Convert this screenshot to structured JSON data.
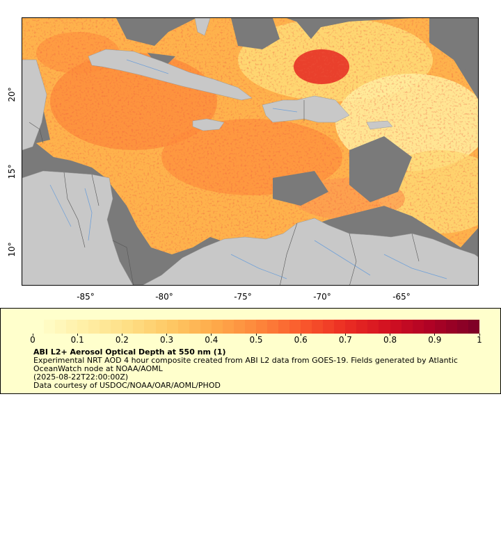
{
  "map": {
    "x_ticks": [
      "-85°",
      "-80°",
      "-75°",
      "-70°",
      "-65°"
    ],
    "y_ticks": [
      "20°",
      "15°",
      "10°"
    ],
    "colors": {
      "ocean_no_data": "#7a7a7a",
      "land": "#c8c8c8",
      "rivers": "#6fa0d8",
      "borders": "#555555"
    }
  },
  "legend": {
    "colorbar_labels": [
      "0",
      "0.1",
      "0.2",
      "0.3",
      "0.4",
      "0.5",
      "0.6",
      "0.7",
      "0.8",
      "0.9",
      "1"
    ],
    "colormap": [
      "#ffffcc",
      "#fff0a8",
      "#fee087",
      "#fec965",
      "#feab4b",
      "#fd893c",
      "#fa5c2e",
      "#ec3023",
      "#d31121",
      "#af0225",
      "#800026"
    ],
    "title": "ABI L2+ Aerosol Optical Depth at 550 nm (1)",
    "description": "Experimental NRT AOD 4 hour composite created from ABI L2 data from GOES-19. Fields generated by Atlantic OceanWatch node at NOAA/AOML",
    "time": "(2025-08-22T22:00:00Z)",
    "credit": "Data courtesy of USDOC/NOAA/OAR/AOML/PHOD"
  }
}
